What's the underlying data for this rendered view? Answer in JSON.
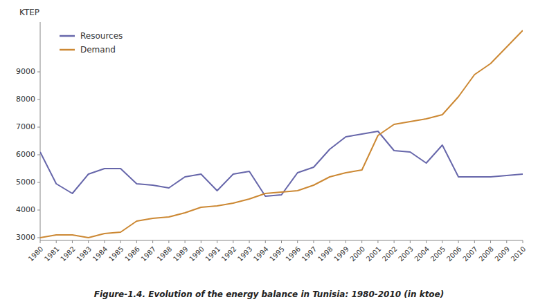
{
  "chart_data": {
    "type": "line",
    "title": "Figure-1.4. Evolution of the energy balance in Tunisia: 1980-2010 (in ktoe)",
    "ylabel": "KTEP",
    "x": [
      1980,
      1981,
      1982,
      1983,
      1984,
      1985,
      1986,
      1987,
      1988,
      1989,
      1990,
      1991,
      1992,
      1993,
      1994,
      1995,
      1996,
      1997,
      1998,
      1999,
      2000,
      2001,
      2002,
      2003,
      2004,
      2005,
      2006,
      2007,
      2008,
      2009,
      2010
    ],
    "series": [
      {
        "name": "Resources",
        "color": "#6666aa",
        "values": [
          6100,
          4950,
          4600,
          5300,
          5500,
          5500,
          4950,
          4900,
          4800,
          5200,
          5300,
          4700,
          5300,
          5400,
          4500,
          4550,
          5350,
          5550,
          6200,
          6650,
          6750,
          6850,
          6150,
          6100,
          5700,
          6350,
          5200,
          5200,
          5200,
          5250,
          5300
        ]
      },
      {
        "name": "Demand",
        "color": "#cc8833",
        "values": [
          3000,
          3100,
          3100,
          3000,
          3150,
          3200,
          3600,
          3700,
          3750,
          3900,
          4100,
          4150,
          4250,
          4400,
          4600,
          4650,
          4700,
          4900,
          5200,
          5350,
          5450,
          6700,
          7100,
          7200,
          7300,
          7450,
          8100,
          8900,
          9300,
          9900,
          10500
        ]
      }
    ],
    "xlim": [
      1980,
      2010
    ],
    "xticks": [
      1980,
      1981,
      1982,
      1983,
      1984,
      1985,
      1986,
      1987,
      1988,
      1989,
      1990,
      1991,
      1992,
      1993,
      1994,
      1995,
      1996,
      1997,
      1998,
      1999,
      2000,
      2001,
      2002,
      2003,
      2004,
      2005,
      2006,
      2007,
      2008,
      2009,
      2010
    ],
    "ylim": [
      2900,
      10800
    ],
    "yticks": [
      3000,
      4000,
      5000,
      6000,
      7000,
      8000,
      9000
    ],
    "legend": "upper left",
    "grid": false
  }
}
